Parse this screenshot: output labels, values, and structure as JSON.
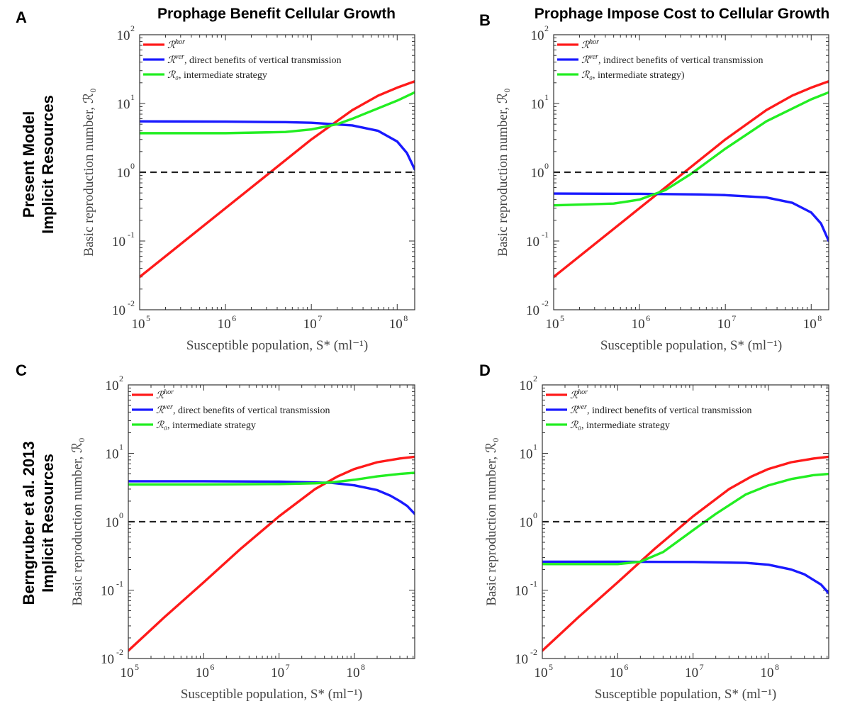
{
  "column_titles": [
    "Prophage Benefit Cellular Growth",
    "Prophage Impose Cost to Cellular Growth"
  ],
  "row_titles": [
    [
      "Present Model",
      "Implicit Resources"
    ],
    [
      "Berngruber et al. 2013",
      "Implicit Resources"
    ]
  ],
  "colors": {
    "hor": "#ff1a1a",
    "ver": "#1a1aff",
    "r0": "#22ee22",
    "threshold": "#222222"
  },
  "chart_data": [
    {
      "panel": "A",
      "type": "line",
      "yscale": "log",
      "xscale": "log",
      "xlabel": "Susceptible population, S* (ml⁻¹)",
      "ylabel": "Basic reproduction number, ℛ₀",
      "xlim": [
        100000,
        160000000
      ],
      "ylim": [
        0.01,
        100
      ],
      "xticks": [
        {
          "base": "10",
          "exp": "5",
          "v": 100000
        },
        {
          "base": "10",
          "exp": "6",
          "v": 1000000
        },
        {
          "base": "10",
          "exp": "7",
          "v": 10000000
        },
        {
          "base": "10",
          "exp": "8",
          "v": 100000000
        }
      ],
      "yticks": [
        {
          "base": "10",
          "exp": "-2",
          "v": 0.01
        },
        {
          "base": "10",
          "exp": "-1",
          "v": 0.1
        },
        {
          "base": "10",
          "exp": "0",
          "v": 1
        },
        {
          "base": "10",
          "exp": "1",
          "v": 10
        },
        {
          "base": "10",
          "exp": "2",
          "v": 100
        }
      ],
      "threshold": 1,
      "legend": [
        {
          "key": "hor",
          "main": "ℛ",
          "sup": "hor",
          "rest": ""
        },
        {
          "key": "ver",
          "main": "ℛ",
          "sup": "ver",
          "rest": ", direct benefits of vertical transmission"
        },
        {
          "key": "r0",
          "main": "ℛ₀",
          "sup": "",
          "rest": ", intermediate strategy"
        }
      ],
      "series": [
        {
          "key": "hor",
          "x": [
            100000,
            300000,
            1000000,
            3000000,
            10000000,
            30000000,
            60000000,
            100000000,
            160000000
          ],
          "y": [
            0.03,
            0.09,
            0.3,
            0.9,
            3,
            8,
            13,
            17,
            21
          ]
        },
        {
          "key": "ver",
          "x": [
            100000,
            1000000,
            5000000,
            10000000,
            30000000,
            60000000,
            100000000,
            130000000,
            160000000
          ],
          "y": [
            5.5,
            5.45,
            5.35,
            5.25,
            4.8,
            4.0,
            2.8,
            1.9,
            1.1
          ]
        },
        {
          "key": "r0",
          "x": [
            100000,
            1000000,
            5000000,
            10000000,
            20000000,
            30000000,
            60000000,
            100000000,
            160000000
          ],
          "y": [
            3.7,
            3.7,
            3.85,
            4.2,
            5.0,
            6.0,
            8.5,
            11,
            14.5
          ]
        }
      ]
    },
    {
      "panel": "B",
      "type": "line",
      "yscale": "log",
      "xscale": "log",
      "xlabel": "Susceptible population, S* (ml⁻¹)",
      "ylabel": "Basic reproduction number, ℛ₀",
      "xlim": [
        100000,
        160000000
      ],
      "ylim": [
        0.01,
        100
      ],
      "xticks": [
        {
          "base": "10",
          "exp": "5",
          "v": 100000
        },
        {
          "base": "10",
          "exp": "6",
          "v": 1000000
        },
        {
          "base": "10",
          "exp": "7",
          "v": 10000000
        },
        {
          "base": "10",
          "exp": "8",
          "v": 100000000
        }
      ],
      "yticks": [
        {
          "base": "10",
          "exp": "-2",
          "v": 0.01
        },
        {
          "base": "10",
          "exp": "-1",
          "v": 0.1
        },
        {
          "base": "10",
          "exp": "0",
          "v": 1
        },
        {
          "base": "10",
          "exp": "1",
          "v": 10
        },
        {
          "base": "10",
          "exp": "2",
          "v": 100
        }
      ],
      "threshold": 1,
      "legend": [
        {
          "key": "hor",
          "main": "ℛ",
          "sup": "hor",
          "rest": ""
        },
        {
          "key": "ver",
          "main": "ℛ",
          "sup": "ver",
          "rest": ", indirect benefits of vertical transmission"
        },
        {
          "key": "r0",
          "main": "ℛ₀",
          "sup": "",
          "rest": ", intermediate strategy)"
        }
      ],
      "series": [
        {
          "key": "hor",
          "x": [
            100000,
            300000,
            1000000,
            3000000,
            10000000,
            30000000,
            60000000,
            100000000,
            160000000
          ],
          "y": [
            0.03,
            0.09,
            0.3,
            0.9,
            3,
            8,
            13,
            17,
            21
          ]
        },
        {
          "key": "ver",
          "x": [
            100000,
            1000000,
            5000000,
            10000000,
            30000000,
            60000000,
            100000000,
            130000000,
            160000000
          ],
          "y": [
            0.49,
            0.485,
            0.475,
            0.465,
            0.43,
            0.36,
            0.26,
            0.18,
            0.1
          ]
        },
        {
          "key": "r0",
          "x": [
            100000,
            500000,
            1000000,
            2000000,
            4000000,
            10000000,
            30000000,
            100000000,
            160000000
          ],
          "y": [
            0.33,
            0.35,
            0.4,
            0.55,
            0.95,
            2.2,
            5.5,
            11.5,
            14.5
          ]
        }
      ]
    },
    {
      "panel": "C",
      "type": "line",
      "yscale": "log",
      "xscale": "log",
      "xlabel": "Susceptible population, S* (ml⁻¹)",
      "ylabel": "Basic reproduction number, ℛ₀",
      "xlim": [
        100000,
        630000000
      ],
      "ylim": [
        0.01,
        100
      ],
      "xticks": [
        {
          "base": "10",
          "exp": "5",
          "v": 100000
        },
        {
          "base": "10",
          "exp": "6",
          "v": 1000000
        },
        {
          "base": "10",
          "exp": "7",
          "v": 10000000
        },
        {
          "base": "10",
          "exp": "8",
          "v": 100000000
        }
      ],
      "yticks": [
        {
          "base": "10",
          "exp": "-2",
          "v": 0.01
        },
        {
          "base": "10",
          "exp": "-1",
          "v": 0.1
        },
        {
          "base": "10",
          "exp": "0",
          "v": 1
        },
        {
          "base": "10",
          "exp": "1",
          "v": 10
        },
        {
          "base": "10",
          "exp": "2",
          "v": 100
        }
      ],
      "threshold": 1,
      "legend": [
        {
          "key": "hor",
          "main": "ℛ",
          "sup": "hor",
          "rest": ""
        },
        {
          "key": "ver",
          "main": "ℛ",
          "sup": "ver",
          "rest": ", direct benefits of vertical transmission"
        },
        {
          "key": "r0",
          "main": "ℛ₀",
          "sup": "",
          "rest": ", intermediate strategy"
        }
      ],
      "series": [
        {
          "key": "hor",
          "x": [
            100000,
            300000,
            1000000,
            3000000,
            10000000,
            30000000,
            60000000,
            100000000,
            200000000,
            400000000,
            630000000
          ],
          "y": [
            0.013,
            0.04,
            0.13,
            0.39,
            1.2,
            3.0,
            4.6,
            5.9,
            7.4,
            8.4,
            8.9
          ]
        },
        {
          "key": "ver",
          "x": [
            100000,
            1000000,
            10000000,
            50000000,
            100000000,
            200000000,
            300000000,
            400000000,
            500000000,
            630000000
          ],
          "y": [
            3.9,
            3.9,
            3.85,
            3.7,
            3.4,
            2.9,
            2.4,
            2.0,
            1.7,
            1.3
          ]
        },
        {
          "key": "r0",
          "x": [
            100000,
            1000000,
            10000000,
            30000000,
            50000000,
            100000000,
            200000000,
            400000000,
            630000000
          ],
          "y": [
            3.5,
            3.5,
            3.55,
            3.65,
            3.75,
            4.1,
            4.6,
            5.0,
            5.2
          ]
        }
      ]
    },
    {
      "panel": "D",
      "type": "line",
      "yscale": "log",
      "xscale": "log",
      "xlabel": "Susceptible population, S* (ml⁻¹)",
      "ylabel": "Basic reproduction number, ℛ₀",
      "xlim": [
        100000,
        630000000
      ],
      "ylim": [
        0.01,
        100
      ],
      "xticks": [
        {
          "base": "10",
          "exp": "5",
          "v": 100000
        },
        {
          "base": "10",
          "exp": "6",
          "v": 1000000
        },
        {
          "base": "10",
          "exp": "7",
          "v": 10000000
        },
        {
          "base": "10",
          "exp": "8",
          "v": 100000000
        }
      ],
      "yticks": [
        {
          "base": "10",
          "exp": "-2",
          "v": 0.01
        },
        {
          "base": "10",
          "exp": "-1",
          "v": 0.1
        },
        {
          "base": "10",
          "exp": "0",
          "v": 1
        },
        {
          "base": "10",
          "exp": "1",
          "v": 10
        },
        {
          "base": "10",
          "exp": "2",
          "v": 100
        }
      ],
      "threshold": 1,
      "legend": [
        {
          "key": "hor",
          "main": "ℛ",
          "sup": "hor",
          "rest": ""
        },
        {
          "key": "ver",
          "main": "ℛ",
          "sup": "ver",
          "rest": ", indirect benefits of vertical transmission"
        },
        {
          "key": "r0",
          "main": "ℛ₀",
          "sup": "",
          "rest": ", intermediate strategy"
        }
      ],
      "series": [
        {
          "key": "hor",
          "x": [
            100000,
            300000,
            1000000,
            3000000,
            10000000,
            30000000,
            60000000,
            100000000,
            200000000,
            400000000,
            630000000
          ],
          "y": [
            0.013,
            0.04,
            0.13,
            0.39,
            1.2,
            3.0,
            4.6,
            5.9,
            7.4,
            8.4,
            8.9
          ]
        },
        {
          "key": "ver",
          "x": [
            100000,
            1000000,
            10000000,
            50000000,
            100000000,
            200000000,
            300000000,
            400000000,
            500000000,
            630000000
          ],
          "y": [
            0.26,
            0.26,
            0.258,
            0.25,
            0.235,
            0.2,
            0.17,
            0.14,
            0.12,
            0.09
          ]
        },
        {
          "key": "r0",
          "x": [
            100000,
            1000000,
            2000000,
            4000000,
            10000000,
            20000000,
            50000000,
            100000000,
            200000000,
            400000000,
            630000000
          ],
          "y": [
            0.24,
            0.24,
            0.26,
            0.36,
            0.75,
            1.3,
            2.5,
            3.4,
            4.2,
            4.8,
            5.0
          ]
        }
      ]
    }
  ]
}
